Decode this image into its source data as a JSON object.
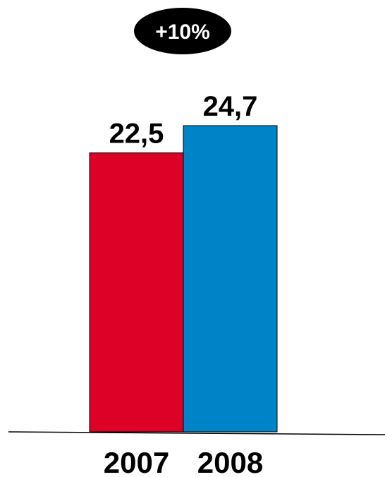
{
  "chart_data": {
    "type": "bar",
    "categories": [
      "2007",
      "2008"
    ],
    "values": [
      22.5,
      24.7
    ],
    "value_labels": [
      "22,5",
      "24,7"
    ],
    "colors": [
      "#DD0027",
      "#0084C8"
    ],
    "annotation": "+10%",
    "ylim": [
      0,
      24.7
    ],
    "grid": false,
    "legend": "none"
  }
}
